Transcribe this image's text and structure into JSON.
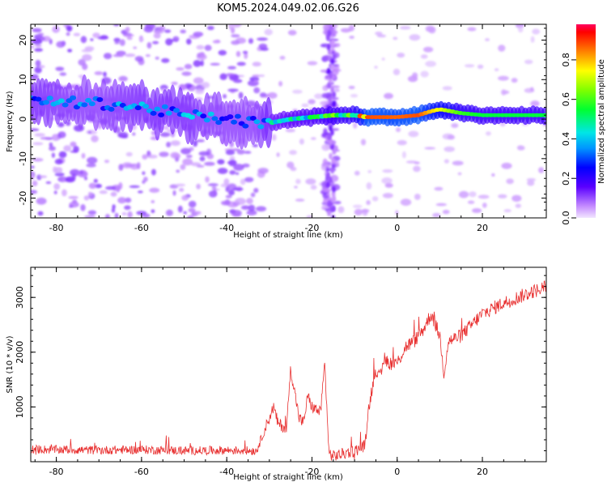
{
  "title": "KOM5.2024.049.02.06.G26",
  "chart_data": [
    {
      "type": "heatmap",
      "xlabel": "Height of straight line (km)",
      "ylabel": "Frequency (Hz)",
      "xlim": [
        -86,
        35
      ],
      "ylim": [
        -25,
        24
      ],
      "x_ticks": [
        -80,
        -60,
        -40,
        -20,
        0,
        20
      ],
      "y_ticks": [
        -20,
        -10,
        0,
        10,
        20
      ],
      "x_tick_labels": [
        "-80",
        "-60",
        "-40",
        "-20",
        "0",
        "20"
      ],
      "y_tick_labels": [
        "-20",
        "-10",
        "0",
        "10",
        "20"
      ],
      "colorbar": {
        "label": "Normalized spectral amplitude",
        "range": [
          0,
          0.98
        ],
        "ticks": [
          0.0,
          0.2,
          0.4,
          0.6,
          0.8
        ],
        "tick_labels": [
          "0.0",
          "0.2",
          "0.4",
          "0.6",
          "0.8"
        ]
      },
      "ridge": {
        "x": [
          -86,
          -70,
          -60,
          -50,
          -40,
          -33,
          -30,
          -25,
          -20,
          -15,
          -10,
          -7,
          0,
          5,
          8,
          10,
          15,
          20,
          35
        ],
        "frequency": [
          4.5,
          4,
          3,
          1,
          0,
          -1,
          -1,
          0,
          0.5,
          1,
          1,
          0.5,
          0.5,
          1,
          2,
          2.5,
          1.5,
          1,
          1
        ],
        "amplitude": [
          0.35,
          0.3,
          0.35,
          0.35,
          0.3,
          0.3,
          0.4,
          0.45,
          0.5,
          0.55,
          0.6,
          0.9,
          0.88,
          0.9,
          0.8,
          0.75,
          0.6,
          0.55,
          0.55
        ]
      },
      "grid": false,
      "legend": "none"
    },
    {
      "type": "line",
      "xlabel": "Height of straight line (km)",
      "ylabel": "SNR (10 * v/v)",
      "xlim": [
        -86,
        35
      ],
      "ylim": [
        0,
        3550
      ],
      "x_ticks": [
        -80,
        -60,
        -40,
        -20,
        0,
        20
      ],
      "y_ticks": [
        1000,
        2000,
        3000
      ],
      "x_tick_labels": [
        "-80",
        "-60",
        "-40",
        "-20",
        "0",
        "20"
      ],
      "y_tick_labels": [
        "1000",
        "2000",
        "3000"
      ],
      "color": "#e83030",
      "series": [
        {
          "x": [
            -86,
            -80,
            -70,
            -60,
            -50,
            -40,
            -33,
            -31,
            -29,
            -28,
            -26,
            -25,
            -23,
            -22,
            -21,
            -20,
            -18,
            -17,
            -16,
            -15,
            -10,
            -7.5,
            -7,
            -6,
            -5,
            -4,
            -3,
            -2,
            0,
            2,
            4,
            6,
            8,
            10,
            11,
            12,
            15,
            20,
            25,
            30,
            35
          ],
          "y": [
            230,
            220,
            210,
            220,
            200,
            210,
            200,
            600,
            1000,
            700,
            600,
            1700,
            800,
            700,
            1200,
            1000,
            900,
            1800,
            150,
            100,
            200,
            300,
            800,
            1300,
            1700,
            1500,
            1900,
            1800,
            1800,
            2100,
            2200,
            2400,
            2700,
            2300,
            1600,
            2200,
            2300,
            2700,
            2900,
            3050,
            3200
          ]
        }
      ],
      "grid": false,
      "legend": "none"
    }
  ]
}
